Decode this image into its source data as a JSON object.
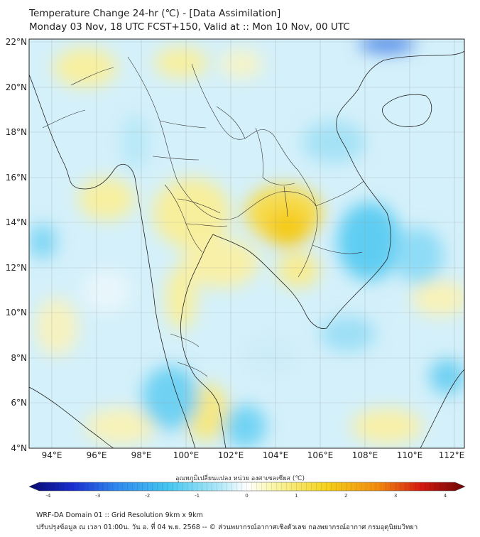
{
  "title_line1": "Temperature Change 24-hr (℃) - [Data Assimilation]",
  "title_line2": "Monday 03 Nov, 18 UTC FCST+150, Valid at :: Mon 10 Nov, 00 UTC",
  "lat_labels": [
    "22°N",
    "20°N",
    "18°N",
    "16°N",
    "14°N",
    "12°N",
    "10°N",
    "8°N",
    "6°N",
    "4°N"
  ],
  "lon_labels": [
    "94°E",
    "96°E",
    "98°E",
    "100°E",
    "102°E",
    "104°E",
    "106°E",
    "108°E",
    "110°E",
    "112°E"
  ],
  "colorbar": {
    "label": "อุณหภูมิเปลี่ยนแปลง หน่วย องศาเซลเซียส (℃)",
    "ticks": [
      "-4",
      "-3",
      "-2",
      "-1",
      "0",
      "1",
      "2",
      "3",
      "4"
    ],
    "min": -4,
    "max": 4,
    "colors": [
      "#08086e",
      "#1a2fd0",
      "#2f88ee",
      "#46c6f0",
      "#b2e9f8",
      "#ffffff",
      "#f9f5a8",
      "#f4d21a",
      "#f28a10",
      "#d41a10",
      "#6a0606"
    ]
  },
  "footer_line1": "WRF-DA Domain 01 :: Grid Resolution 9km x 9km",
  "footer_line2": "ปรับปรุงข้อมูล ณ เวลา 01:00น. วัน อ. ที่ 04 พ.ย. 2568 -- © ส่วนพยากรณ์อากาศเชิงตัวเลข กองพยากรณ์อากาศ กรมอุตุนิยมวิทยา"
}
